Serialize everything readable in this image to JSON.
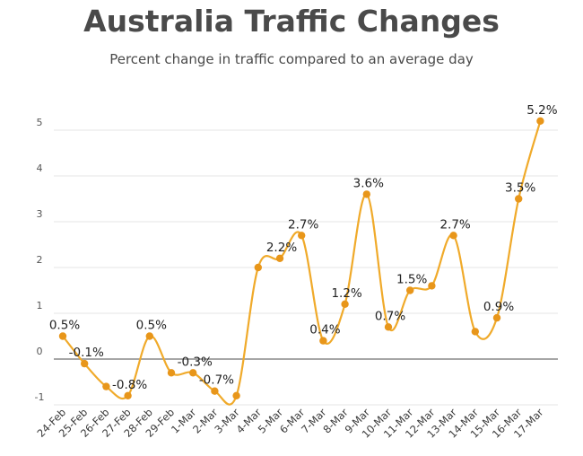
{
  "title": "Australia Traffic Changes",
  "subtitle": "Percent change in traffic compared to an average day",
  "colors": {
    "line": "#f0aa2a",
    "marker": "#e8961a",
    "grid": "#e4e4e4",
    "zero": "#888888"
  },
  "chart_data": {
    "type": "line",
    "categories": [
      "24-Feb",
      "25-Feb",
      "26-Feb",
      "27-Feb",
      "28-Feb",
      "29-Feb",
      "1-Mar",
      "2-Mar",
      "3-Mar",
      "4-Mar",
      "5-Mar",
      "6-Mar",
      "7-Mar",
      "8-Mar",
      "9-Mar",
      "10-Mar",
      "11-Mar",
      "12-Mar",
      "13-Mar",
      "14-Mar",
      "15-Mar",
      "16-Mar",
      "17-Mar"
    ],
    "series": [
      {
        "values": [
          0.5,
          -0.1,
          -0.6,
          -0.8,
          0.5,
          -0.3,
          -0.3,
          -0.7,
          -0.8,
          2.0,
          2.2,
          2.7,
          0.4,
          1.2,
          3.6,
          0.7,
          1.5,
          1.6,
          2.7,
          0.6,
          0.9,
          3.5,
          5.2
        ]
      }
    ],
    "data_labels": [
      "0.5%",
      "-0.1%",
      "",
      "-0.8%",
      "0.5%",
      "",
      "-0.3%",
      "-0.7%",
      "",
      "",
      "2.2%",
      "2.7%",
      "0.4%",
      "1.2%",
      "3.6%",
      "0.7%",
      "1.5%",
      "",
      "2.7%",
      "",
      "0.9%",
      "3.5%",
      "5.2%"
    ],
    "yticks": [
      -1,
      0,
      1,
      2,
      3,
      4,
      5
    ],
    "ylim": [
      -1.2,
      5.4
    ],
    "xlabel": "",
    "ylabel": "",
    "grid": true,
    "legend": "none"
  }
}
